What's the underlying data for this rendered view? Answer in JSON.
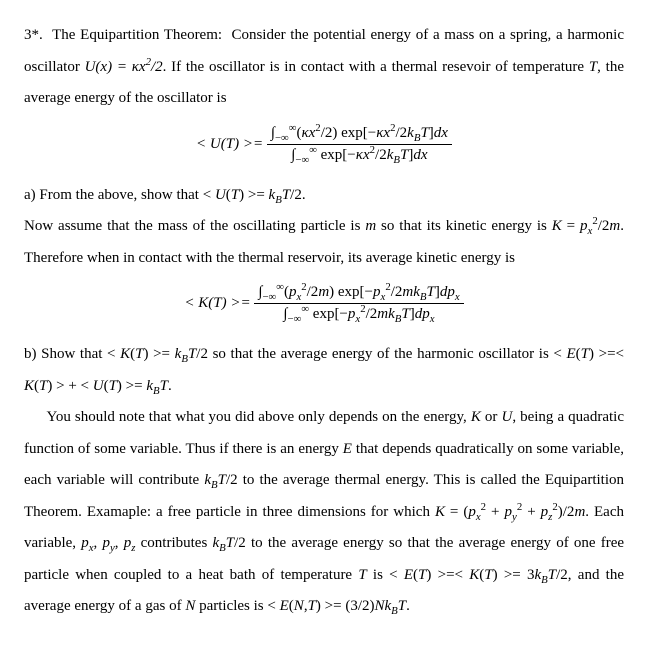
{
  "p1": {
    "lead": "3*.  The Equipartition Theorem:  Consider the potential energy of a mass on a spring, a harmonic oscillator ",
    "u_def": "U(x) = κx²/2",
    "after_u": ".  If the oscillator is in contact with a thermal resevoir of temperature ",
    "t": "T",
    "tail": ", the average energy of the oscillator is"
  },
  "eq1": {
    "lhs": "< U(T) >=",
    "num": "∫₋∞∞ (κx²/2) exp[−κx²/2k_BT]dx",
    "den": "∫₋∞∞ exp[−κx²/2k_BT]dx"
  },
  "p2": {
    "a": "a) From the above, show that ",
    "show": "< U(T) >= k_BT/2",
    "dot": "."
  },
  "p3": {
    "t1": "Now assume that the mass of the oscillating particle is ",
    "m": "m",
    "t2": " so that its kinetic energy is ",
    "k_def": "K = p_x²/2m",
    "t3": ".  Therefore when in contact with the thermal reservoir, its average kinetic energy is"
  },
  "eq2": {
    "lhs": "< K(T) >=",
    "num": "∫₋∞∞ (p_x²/2m) exp[−p_x²/2mk_BT]dp_x",
    "den": "∫₋∞∞ exp[−p_x²/2mk_BT]dp_x"
  },
  "p4": {
    "b": "b) Show that ",
    "show_k": "< K(T) >= k_BT/2",
    "mid": " so that the average energy of the harmonic oscillator is ",
    "e_eq": "< E(T) >=< K(T) > + < U(T) >= k_BT",
    "dot": "."
  },
  "p5": {
    "t1": "You should note that what you did above only depends on the energy, ",
    "k": "K",
    "or": " or ",
    "u": "U",
    "t2": ", being a quadratic function of some variable. Thus if there is an energy ",
    "e": "E",
    "t3": " that depends quadratically on some variable, each variable will contribute ",
    "kbt2": "k_BT/2",
    "t4": " to the average thermal energy. This is called the Equipartition Theorem. Examaple: a free particle in three dimensions for which ",
    "k_free": "K = (p_x² + p_y² + p_z²)/2m",
    "t5": ". Each variable, ",
    "pvars": "p_x, p_y, p_z",
    "t6": " contributes ",
    "kbt2b": "k_BT/2",
    "t7": " to the average energy so that the average energy of one free particle when coupled to a heat bath of temperature ",
    "t": "T",
    "t8": " is ",
    "e_one": "< E(T) >=< K(T) >= 3k_BT/2",
    "t9": ", and the average energy of a gas of ",
    "n": "N",
    "t10": " particles is ",
    "e_n": "< E(N,T) >= (3/2)Nk_BT",
    "dot": "."
  }
}
